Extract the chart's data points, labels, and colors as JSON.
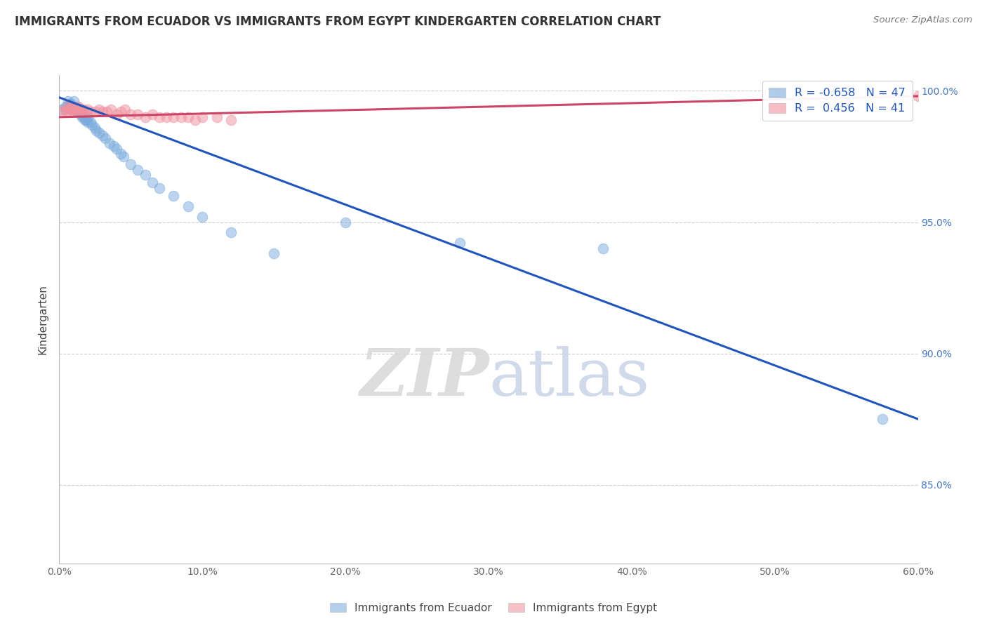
{
  "title": "IMMIGRANTS FROM ECUADOR VS IMMIGRANTS FROM EGYPT KINDERGARTEN CORRELATION CHART",
  "source": "Source: ZipAtlas.com",
  "ylabel": "Kindergarten",
  "watermark_zip": "ZIP",
  "watermark_atlas": "atlas",
  "legend_ecuador": "Immigrants from Ecuador",
  "legend_egypt": "Immigrants from Egypt",
  "ecuador_R": -0.658,
  "ecuador_N": 47,
  "egypt_R": 0.456,
  "egypt_N": 41,
  "ecuador_color": "#7aabdc",
  "egypt_color": "#f0919e",
  "ecuador_line_color": "#2255bb",
  "egypt_line_color": "#cc4466",
  "xlim": [
    0.0,
    0.6
  ],
  "ylim": [
    0.82,
    1.006
  ],
  "yticks": [
    0.85,
    0.9,
    0.95,
    1.0
  ],
  "ytick_labels": [
    "85.0%",
    "90.0%",
    "95.0%",
    "100.0%"
  ],
  "xticks": [
    0.0,
    0.1,
    0.2,
    0.3,
    0.4,
    0.5,
    0.6
  ],
  "xtick_labels": [
    "0.0%",
    "10.0%",
    "20.0%",
    "30.0%",
    "40.0%",
    "50.0%",
    "60.0%"
  ],
  "ecuador_x": [
    0.002,
    0.004,
    0.005,
    0.006,
    0.007,
    0.008,
    0.009,
    0.01,
    0.01,
    0.011,
    0.012,
    0.013,
    0.014,
    0.015,
    0.015,
    0.016,
    0.017,
    0.018,
    0.019,
    0.02,
    0.02,
    0.022,
    0.023,
    0.025,
    0.026,
    0.028,
    0.03,
    0.032,
    0.035,
    0.038,
    0.04,
    0.043,
    0.045,
    0.05,
    0.055,
    0.06,
    0.065,
    0.07,
    0.08,
    0.09,
    0.1,
    0.12,
    0.15,
    0.2,
    0.28,
    0.38,
    0.575
  ],
  "ecuador_y": [
    0.993,
    0.994,
    0.994,
    0.996,
    0.995,
    0.995,
    0.994,
    0.993,
    0.996,
    0.993,
    0.992,
    0.994,
    0.992,
    0.991,
    0.993,
    0.99,
    0.99,
    0.989,
    0.989,
    0.988,
    0.99,
    0.988,
    0.987,
    0.986,
    0.985,
    0.984,
    0.983,
    0.982,
    0.98,
    0.979,
    0.978,
    0.976,
    0.975,
    0.972,
    0.97,
    0.968,
    0.965,
    0.963,
    0.96,
    0.956,
    0.952,
    0.946,
    0.938,
    0.95,
    0.942,
    0.94,
    0.875
  ],
  "egypt_x": [
    0.002,
    0.004,
    0.005,
    0.006,
    0.007,
    0.008,
    0.009,
    0.01,
    0.011,
    0.012,
    0.013,
    0.014,
    0.015,
    0.016,
    0.017,
    0.018,
    0.02,
    0.022,
    0.025,
    0.028,
    0.03,
    0.033,
    0.036,
    0.04,
    0.043,
    0.046,
    0.05,
    0.055,
    0.06,
    0.065,
    0.07,
    0.075,
    0.08,
    0.085,
    0.09,
    0.095,
    0.1,
    0.11,
    0.12,
    0.55,
    0.6
  ],
  "egypt_y": [
    0.992,
    0.993,
    0.992,
    0.994,
    0.993,
    0.993,
    0.994,
    0.992,
    0.993,
    0.993,
    0.994,
    0.993,
    0.992,
    0.993,
    0.993,
    0.992,
    0.993,
    0.992,
    0.992,
    0.993,
    0.992,
    0.992,
    0.993,
    0.991,
    0.992,
    0.993,
    0.991,
    0.991,
    0.99,
    0.991,
    0.99,
    0.99,
    0.99,
    0.99,
    0.99,
    0.989,
    0.99,
    0.99,
    0.989,
    0.997,
    0.998
  ],
  "ecuador_line_x": [
    0.0,
    0.6
  ],
  "ecuador_line_y": [
    0.9975,
    0.875
  ],
  "egypt_line_x": [
    0.0,
    0.6
  ],
  "egypt_line_y": [
    0.99,
    0.998
  ]
}
